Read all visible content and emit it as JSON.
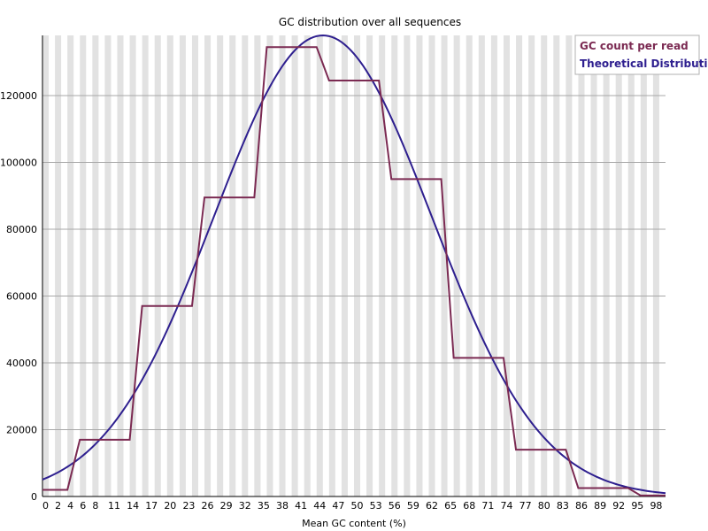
{
  "chart_data": {
    "type": "line",
    "title": "GC distribution over all sequences",
    "xlabel": "Mean GC content (%)",
    "ylabel": "",
    "xlim": [
      0,
      100
    ],
    "ylim": [
      0,
      138000
    ],
    "x_ticks": [
      0,
      2,
      4,
      6,
      8,
      11,
      14,
      17,
      20,
      23,
      26,
      29,
      32,
      35,
      38,
      41,
      44,
      47,
      50,
      53,
      56,
      59,
      62,
      65,
      68,
      71,
      74,
      77,
      80,
      83,
      86,
      89,
      92,
      95,
      98
    ],
    "y_ticks": [
      0,
      20000,
      40000,
      60000,
      80000,
      100000,
      120000
    ],
    "y_tick_labels": [
      "0",
      "20000",
      "40000",
      "60000",
      "80000",
      "100000",
      "120000"
    ],
    "grid": true,
    "legend_position": "top-right",
    "series": [
      {
        "name": "GC count per read",
        "color": "#7b2a52",
        "x": [
          0,
          4,
          6,
          14,
          16,
          24,
          26,
          34,
          36,
          44,
          46,
          54,
          56,
          64,
          66,
          74,
          76,
          84,
          86,
          94,
          96,
          100
        ],
        "y": [
          2000,
          2000,
          17000,
          17000,
          57000,
          57000,
          89500,
          89500,
          134500,
          134500,
          124500,
          124500,
          95000,
          95000,
          41500,
          41500,
          14000,
          14000,
          2500,
          2500,
          300,
          300
        ]
      },
      {
        "name": "Theoretical Distribution",
        "color": "#2e1f8f",
        "mean": 45,
        "sd": 17.5,
        "peak": 138000
      }
    ]
  }
}
